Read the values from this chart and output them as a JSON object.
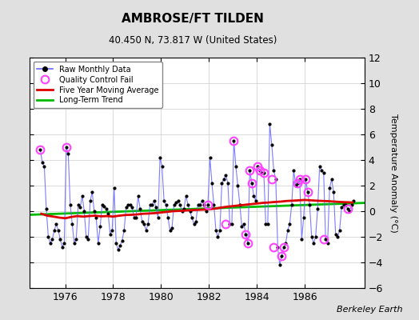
{
  "title": "AMBROSE/FT TILDEN",
  "subtitle": "40.450 N, 73.817 W (United States)",
  "ylabel": "Temperature Anomaly (°C)",
  "credit": "Berkeley Earth",
  "ylim": [
    -6,
    12
  ],
  "yticks": [
    -6,
    -4,
    -2,
    0,
    2,
    4,
    6,
    8,
    10,
    12
  ],
  "xlim_start": 1974.5,
  "xlim_end": 1988.5,
  "xticks": [
    1976,
    1978,
    1980,
    1982,
    1984,
    1986
  ],
  "bg_color": "#e0e0e0",
  "plot_bg_color": "#ffffff",
  "raw_color": "#6666ff",
  "raw_marker_color": "#000000",
  "qc_color": "#ff44ff",
  "moving_avg_color": "#dd0000",
  "trend_color": "#00bb00",
  "raw_monthly_x": [
    1974.958,
    1975.042,
    1975.125,
    1975.208,
    1975.292,
    1975.375,
    1975.458,
    1975.542,
    1975.625,
    1975.708,
    1975.792,
    1975.875,
    1975.958,
    1976.042,
    1976.125,
    1976.208,
    1976.292,
    1976.375,
    1976.458,
    1976.542,
    1976.625,
    1976.708,
    1976.792,
    1976.875,
    1976.958,
    1977.042,
    1977.125,
    1977.208,
    1977.292,
    1977.375,
    1977.458,
    1977.542,
    1977.625,
    1977.708,
    1977.792,
    1977.875,
    1977.958,
    1978.042,
    1978.125,
    1978.208,
    1978.292,
    1978.375,
    1978.458,
    1978.542,
    1978.625,
    1978.708,
    1978.792,
    1978.875,
    1978.958,
    1979.042,
    1979.125,
    1979.208,
    1979.292,
    1979.375,
    1979.458,
    1979.542,
    1979.625,
    1979.708,
    1979.792,
    1979.875,
    1979.958,
    1980.042,
    1980.125,
    1980.208,
    1980.292,
    1980.375,
    1980.458,
    1980.542,
    1980.625,
    1980.708,
    1980.792,
    1980.875,
    1980.958,
    1981.042,
    1981.125,
    1981.208,
    1981.292,
    1981.375,
    1981.458,
    1981.542,
    1981.625,
    1981.708,
    1981.792,
    1981.875,
    1981.958,
    1982.042,
    1982.125,
    1982.208,
    1982.292,
    1982.375,
    1982.458,
    1982.542,
    1982.625,
    1982.708,
    1982.792,
    1982.875,
    1982.958,
    1983.042,
    1983.125,
    1983.208,
    1983.292,
    1983.375,
    1983.458,
    1983.542,
    1983.625,
    1983.708,
    1983.792,
    1983.875,
    1983.958,
    1984.042,
    1984.125,
    1984.208,
    1984.292,
    1984.375,
    1984.458,
    1984.542,
    1984.625,
    1984.708,
    1984.792,
    1984.875,
    1984.958,
    1985.042,
    1985.125,
    1985.208,
    1985.292,
    1985.375,
    1985.458,
    1985.542,
    1985.625,
    1985.708,
    1985.792,
    1985.875,
    1985.958,
    1986.042,
    1986.125,
    1986.208,
    1986.292,
    1986.375,
    1986.458,
    1986.542,
    1986.625,
    1986.708,
    1986.792,
    1986.875,
    1986.958,
    1987.042,
    1987.125,
    1987.208,
    1987.292,
    1987.375,
    1987.458,
    1987.542,
    1987.625,
    1987.708,
    1987.792,
    1987.875,
    1987.958,
    1988.042
  ],
  "raw_monthly_y": [
    4.8,
    3.8,
    3.5,
    0.2,
    -2.0,
    -2.5,
    -2.2,
    -1.5,
    -1.0,
    -1.5,
    -2.2,
    -2.8,
    -2.5,
    5.0,
    4.5,
    0.5,
    -1.0,
    -2.5,
    -2.2,
    0.5,
    0.3,
    1.2,
    0.0,
    -2.0,
    -2.2,
    0.8,
    1.5,
    0.0,
    -0.5,
    -2.5,
    -1.2,
    0.5,
    0.4,
    0.2,
    -0.2,
    -1.8,
    -1.5,
    1.8,
    -2.5,
    -3.0,
    -2.7,
    -2.3,
    -1.5,
    0.3,
    0.5,
    0.5,
    0.3,
    -0.5,
    -0.5,
    1.2,
    0.2,
    -0.8,
    -1.0,
    -1.5,
    -1.0,
    0.5,
    0.5,
    0.8,
    0.3,
    -0.5,
    4.2,
    3.5,
    0.8,
    0.5,
    -0.5,
    -1.5,
    -1.3,
    0.5,
    0.7,
    0.8,
    0.5,
    0.0,
    0.2,
    1.2,
    0.5,
    0.0,
    -0.5,
    -1.0,
    -0.8,
    0.5,
    0.5,
    0.8,
    0.5,
    0.0,
    0.5,
    4.2,
    2.2,
    0.5,
    -1.5,
    -2.0,
    -1.5,
    2.2,
    2.5,
    2.8,
    2.2,
    -1.0,
    -1.0,
    5.5,
    3.5,
    2.0,
    0.5,
    -1.2,
    -1.0,
    -1.8,
    -2.5,
    3.2,
    2.2,
    1.2,
    0.8,
    3.5,
    3.2,
    3.0,
    3.0,
    -1.0,
    -1.0,
    6.8,
    5.2,
    3.2,
    2.5,
    -2.8,
    -4.2,
    -3.5,
    -2.8,
    -2.5,
    -1.5,
    -1.0,
    0.5,
    3.2,
    2.0,
    2.2,
    2.5,
    -2.2,
    -0.5,
    2.5,
    1.5,
    0.5,
    -2.0,
    -2.5,
    -2.0,
    0.2,
    3.5,
    3.2,
    3.0,
    -2.2,
    -2.5,
    1.8,
    2.5,
    1.5,
    -1.8,
    -2.0,
    -1.5,
    0.3,
    0.5,
    0.5,
    0.2,
    0.0,
    0.5,
    0.8
  ],
  "qc_fail_x": [
    1974.958,
    1976.042,
    1981.958,
    1982.708,
    1983.042,
    1983.542,
    1983.625,
    1983.708,
    1983.792,
    1984.042,
    1984.125,
    1984.292,
    1984.625,
    1984.708,
    1985.042,
    1985.125,
    1985.708,
    1985.792,
    1986.042,
    1986.125,
    1986.792,
    1987.792
  ],
  "qc_fail_y": [
    4.8,
    5.0,
    0.5,
    -1.0,
    5.5,
    -1.8,
    -2.5,
    3.2,
    2.2,
    3.5,
    3.2,
    3.0,
    2.5,
    -2.8,
    -3.5,
    -2.8,
    2.2,
    2.5,
    2.5,
    1.5,
    -2.2,
    0.2
  ],
  "moving_avg_x": [
    1975.0,
    1975.25,
    1975.5,
    1975.75,
    1976.0,
    1976.25,
    1976.5,
    1976.75,
    1977.0,
    1977.25,
    1977.5,
    1977.75,
    1978.0,
    1978.25,
    1978.5,
    1978.75,
    1979.0,
    1979.25,
    1979.5,
    1979.75,
    1980.0,
    1980.25,
    1980.5,
    1980.75,
    1981.0,
    1981.25,
    1981.5,
    1981.75,
    1982.0,
    1982.25,
    1982.5,
    1982.75,
    1983.0,
    1983.25,
    1983.5,
    1983.75,
    1984.0,
    1984.25,
    1984.5,
    1984.75,
    1985.0,
    1985.25,
    1985.5,
    1985.75,
    1986.0,
    1986.25,
    1986.5,
    1986.75,
    1987.0,
    1987.25,
    1987.5,
    1987.75,
    1988.0
  ],
  "moving_avg_y": [
    -0.2,
    -0.35,
    -0.42,
    -0.5,
    -0.55,
    -0.45,
    -0.38,
    -0.42,
    -0.38,
    -0.35,
    -0.4,
    -0.38,
    -0.42,
    -0.35,
    -0.3,
    -0.28,
    -0.25,
    -0.2,
    -0.18,
    -0.15,
    -0.1,
    -0.05,
    0.0,
    0.02,
    0.05,
    0.08,
    0.1,
    0.12,
    0.15,
    0.2,
    0.28,
    0.35,
    0.4,
    0.45,
    0.5,
    0.55,
    0.6,
    0.65,
    0.68,
    0.72,
    0.75,
    0.8,
    0.82,
    0.85,
    0.88,
    0.85,
    0.82,
    0.8,
    0.78,
    0.75,
    0.72,
    0.7,
    0.68
  ],
  "trend_x": [
    1974.5,
    1988.5
  ],
  "trend_y": [
    -0.28,
    0.65
  ]
}
